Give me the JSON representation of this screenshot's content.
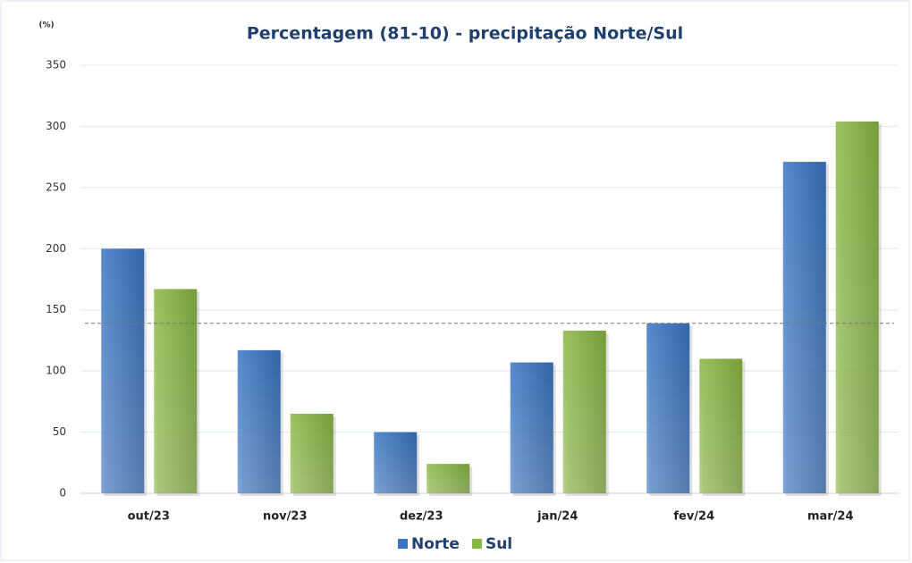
{
  "chart_data": {
    "type": "bar",
    "title": "Percentagem (81-10) - precipitação Norte/Sul",
    "y_label": "(%)",
    "categories": [
      "out/23",
      "nov/23",
      "dez/23",
      "jan/24",
      "fev/24",
      "mar/24"
    ],
    "series": [
      {
        "name": "Norte",
        "color": "#3a75c4",
        "values": [
          200,
          117,
          50,
          107,
          139,
          271
        ]
      },
      {
        "name": "Sul",
        "color": "#8ab843",
        "values": [
          167,
          65,
          24,
          133,
          110,
          304
        ]
      }
    ],
    "reference_line": 139,
    "ylim": [
      0,
      350
    ],
    "yticks": [
      0,
      50,
      100,
      150,
      200,
      250,
      300,
      350
    ],
    "grid": true,
    "legend": "bottom"
  }
}
